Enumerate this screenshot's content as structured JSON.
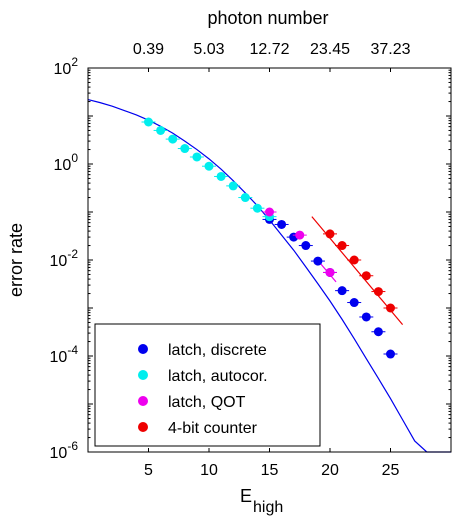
{
  "chart_data": {
    "type": "scatter",
    "xlabel": "E",
    "xlabel_sub": "high",
    "ylabel": "error rate",
    "top_axis_label": "photon number",
    "top_ticks": [
      {
        "x": 5,
        "label": "0.39"
      },
      {
        "x": 10,
        "label": "5.03"
      },
      {
        "x": 15,
        "label": "12.72"
      },
      {
        "x": 20,
        "label": "23.45"
      },
      {
        "x": 25,
        "label": "37.23"
      }
    ],
    "xlim": [
      0,
      30
    ],
    "ylim_exp": [
      -6,
      2
    ],
    "y_scale": "log",
    "x_ticks": [
      5,
      10,
      15,
      20,
      25
    ],
    "y_tick_exponents": [
      -6,
      -4,
      -2,
      0,
      2
    ],
    "y_tick_base": "10",
    "legend_placement": "bottom-left",
    "series": [
      {
        "name": "latch, discrete",
        "color": "#0000ee",
        "x": [
          15,
          16,
          17,
          18,
          19,
          20,
          21,
          22,
          23,
          24,
          25
        ],
        "y": [
          0.07,
          0.055,
          0.03,
          0.02,
          0.0095,
          0.0055,
          0.0023,
          0.0013,
          0.00065,
          0.00032,
          0.00011
        ]
      },
      {
        "name": "latch, autocor.",
        "color": "#00eeee",
        "x": [
          5,
          6,
          7,
          8,
          9,
          10,
          11,
          12,
          13,
          14,
          15
        ],
        "y": [
          7.5,
          5.0,
          3.3,
          2.1,
          1.4,
          0.9,
          0.55,
          0.35,
          0.2,
          0.12,
          0.08
        ]
      },
      {
        "name": "latch, QOT",
        "color": "#ee00ee",
        "x": [
          15,
          17.5,
          20
        ],
        "y": [
          0.1,
          0.033,
          0.0055
        ]
      },
      {
        "name": "4-bit counter",
        "color": "#ee0000",
        "x": [
          20,
          21,
          22,
          23,
          24,
          25
        ],
        "y": [
          0.035,
          0.02,
          0.01,
          0.0047,
          0.0022,
          0.001
        ]
      }
    ],
    "fits": [
      {
        "color": "#0000ee",
        "x": [
          0,
          1,
          2,
          3,
          4,
          5,
          6,
          7,
          8,
          9,
          10,
          11,
          12,
          13,
          14,
          15,
          16,
          17,
          18,
          19,
          20,
          21,
          22,
          23,
          24,
          25,
          26,
          27,
          28,
          29,
          30
        ],
        "y": [
          22,
          19,
          16,
          13,
          10.5,
          8.2,
          6.1,
          4.4,
          3.0,
          2.0,
          1.28,
          0.78,
          0.45,
          0.25,
          0.135,
          0.068,
          0.033,
          0.016,
          0.0072,
          0.0032,
          0.0014,
          0.00058,
          0.00023,
          8.8e-05,
          3.4e-05,
          1.3e-05,
          4.7e-06,
          1.7e-06,
          5.7e-07,
          1.9e-07,
          5.5e-08
        ]
      },
      {
        "color": "#ee0000",
        "x": [
          18.5,
          26
        ],
        "y": [
          0.08,
          0.00045
        ]
      },
      {
        "color": "#ee00ee",
        "x": [
          19.2,
          20.5
        ],
        "y": [
          0.0085,
          0.0035
        ]
      }
    ]
  }
}
